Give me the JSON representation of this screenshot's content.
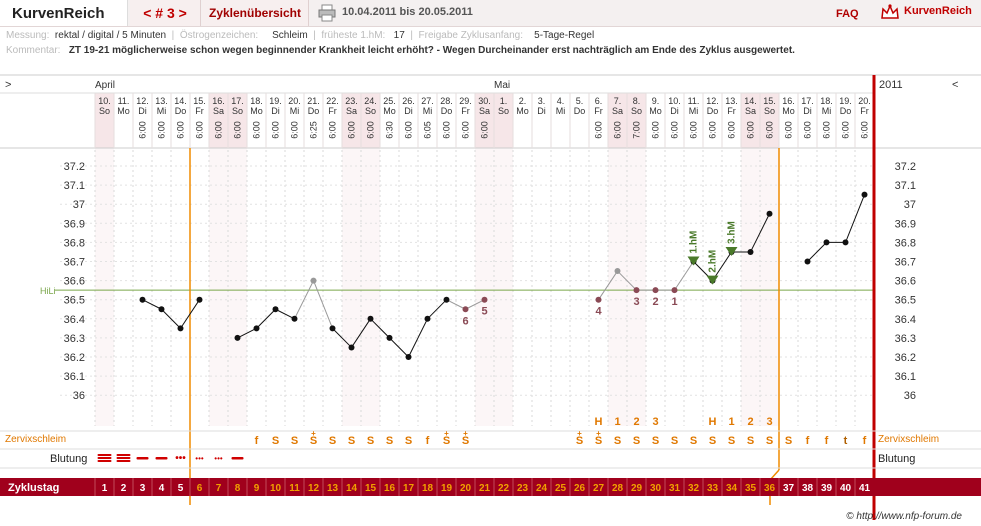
{
  "app": {
    "title": "KurvenReich",
    "cycle_nav": "< # 3 >",
    "overview_link": "Zyklenübersicht",
    "date_range": "10.04.2011 bis 20.05.2011",
    "faq": "FAQ",
    "logo_text": "KurvenReich",
    "print_icon": "printer-icon",
    "logo_icon": "crown-icon"
  },
  "meta": {
    "messung_label": "Messung:",
    "messung_value": "rektal / digital / 5 Minuten",
    "oestrogen_label": "Östrogenzeichen:",
    "oestrogen_value": "Schleim",
    "hm_label": "früheste 1.hM:",
    "hm_value": "17",
    "freigabe_label": "Freigabe Zyklusanfang:",
    "freigabe_value": "5-Tage-Regel",
    "kommentar_label": "Kommentar:",
    "kommentar_value": "ZT 19-21 möglicherweise schon wegen beginnender Krankheit leicht erhöht? - Wegen Durcheinander erst nachträglich am Ende des Zyklus ausgewertet."
  },
  "nav": {
    "prev": ">",
    "next": "<",
    "year": "2011"
  },
  "chart_data": {
    "type": "line",
    "months": [
      {
        "label": "April",
        "day_index": 0
      },
      {
        "label": "Mai",
        "day_index": 21
      }
    ],
    "dates": [
      "10.",
      "11.",
      "12.",
      "13.",
      "14.",
      "15.",
      "16.",
      "17.",
      "18.",
      "19.",
      "20.",
      "21.",
      "22.",
      "23.",
      "24.",
      "25.",
      "26.",
      "27.",
      "28.",
      "29.",
      "30.",
      "1.",
      "2.",
      "3.",
      "4.",
      "5.",
      "6.",
      "7.",
      "8.",
      "9.",
      "10.",
      "11.",
      "12.",
      "13.",
      "14.",
      "15.",
      "16.",
      "17.",
      "18.",
      "19.",
      "20."
    ],
    "weekdays": [
      "So",
      "Mo",
      "Di",
      "Mi",
      "Do",
      "Fr",
      "Sa",
      "So",
      "Mo",
      "Di",
      "Mi",
      "Do",
      "Fr",
      "Sa",
      "So",
      "Mo",
      "Di",
      "Mi",
      "Do",
      "Fr",
      "Sa",
      "So",
      "Mo",
      "Di",
      "Mi",
      "Do",
      "Fr",
      "Sa",
      "So",
      "Mo",
      "Di",
      "Mi",
      "Do",
      "Fr",
      "Sa",
      "So",
      "Mo",
      "Di",
      "Mi",
      "Do",
      "Fr"
    ],
    "times": [
      "",
      "",
      "6:00",
      "6:00",
      "6:00",
      "6:00",
      "6:00",
      "6:00",
      "6:00",
      "6:00",
      "6:00",
      "6:25",
      "6:00",
      "6:00",
      "6:00",
      "6:30",
      "6:00",
      "6:05",
      "6:00",
      "6:00",
      "6:00",
      "",
      "",
      "",
      "",
      "",
      "6:00",
      "6:00",
      "7:00",
      "6:00",
      "6:00",
      "6:00",
      "6:00",
      "6:00",
      "6:00",
      "6:00",
      "6:00",
      "6:00",
      "6:00",
      "6:00",
      "6:00"
    ],
    "weekend_days": [
      0,
      6,
      7,
      13,
      14,
      20,
      21,
      27,
      28,
      34,
      35
    ],
    "y_ticks": [
      "37.2",
      "37.1",
      "37",
      "36.9",
      "36.8",
      "36.7",
      "36.6",
      "36.5",
      "36.4",
      "36.3",
      "36.2",
      "36.1",
      "36"
    ],
    "ylim": [
      35.9,
      37.3
    ],
    "hili_label": "HiLi",
    "hili_value": 36.55,
    "temps": [
      null,
      null,
      36.5,
      36.45,
      36.35,
      36.5,
      null,
      36.3,
      36.35,
      36.45,
      36.4,
      36.6,
      36.35,
      36.25,
      36.4,
      36.3,
      36.2,
      36.4,
      36.5,
      36.45,
      36.5,
      null,
      null,
      null,
      null,
      null,
      36.5,
      36.65,
      36.55,
      36.55,
      36.55,
      36.7,
      36.6,
      36.75,
      36.75,
      36.95,
      null,
      36.7,
      36.8,
      36.8,
      37.05
    ],
    "excluded": [
      11,
      19,
      20,
      26,
      27,
      28,
      29,
      30
    ],
    "count_labels": [
      {
        "day": 19,
        "text": "6"
      },
      {
        "day": 20,
        "text": "5"
      },
      {
        "day": 26,
        "text": "4"
      },
      {
        "day": 28,
        "text": "3"
      },
      {
        "day": 29,
        "text": "2"
      },
      {
        "day": 30,
        "text": "1"
      }
    ],
    "hm_markers": [
      {
        "day": 31,
        "text": "1.hM"
      },
      {
        "day": 32,
        "text": "2.hM"
      },
      {
        "day": 33,
        "text": "3.hM"
      }
    ],
    "count_row": [
      {
        "day": 26,
        "text": "H"
      },
      {
        "day": 27,
        "text": "1"
      },
      {
        "day": 28,
        "text": "2"
      },
      {
        "day": 29,
        "text": "3"
      },
      {
        "day": 32,
        "text": "H"
      },
      {
        "day": 33,
        "text": "1"
      },
      {
        "day": 34,
        "text": "2"
      },
      {
        "day": 35,
        "text": "3"
      }
    ],
    "cervix_label": "Zervixschleim",
    "cervix": [
      "",
      "",
      "",
      "",
      "",
      "",
      "",
      "",
      "f",
      "S",
      "S",
      "S̈",
      "S",
      "S",
      "S",
      "S",
      "S",
      "f",
      "S̈",
      "S̈",
      "",
      "",
      "",
      "",
      "",
      "S̈",
      "S̈",
      "S",
      "S",
      "S",
      "S",
      "S",
      "S",
      "S",
      "S",
      "S",
      "S",
      "f",
      "f",
      "t",
      "f"
    ],
    "cervix_text": [
      "",
      "",
      "",
      "",
      "",
      "",
      "",
      "",
      "f",
      "S",
      "S",
      "S",
      "S",
      "S",
      "S",
      "S",
      "S",
      "f",
      "S",
      "S",
      "",
      "",
      "",
      "",
      "",
      "S",
      "S",
      "S",
      "S",
      "S",
      "S",
      "S",
      "S",
      "S",
      "S",
      "S",
      "S",
      "f",
      "f",
      "t",
      "f"
    ],
    "cervix_plus": [
      11,
      18,
      19,
      25,
      26
    ],
    "bleeding_label": "Blutung",
    "bleeding": [
      "heavy",
      "heavy",
      "medium",
      "medium",
      "light",
      "spot",
      "spot",
      "medium",
      "",
      "",
      "",
      "",
      "",
      "",
      "",
      "",
      "",
      "",
      "",
      "",
      "",
      "",
      "",
      "",
      "",
      "",
      "",
      "",
      "",
      "",
      "",
      "",
      "",
      "",
      "",
      "",
      "",
      "",
      "",
      "",
      ""
    ],
    "cycle_label": "Zyklustag",
    "cycle_days": [
      "1",
      "2",
      "3",
      "4",
      "5",
      "6",
      "7",
      "8",
      "9",
      "10",
      "11",
      "12",
      "13",
      "14",
      "15",
      "16",
      "17",
      "18",
      "19",
      "20",
      "21",
      "22",
      "23",
      "24",
      "25",
      "26",
      "27",
      "28",
      "29",
      "30",
      "31",
      "32",
      "33",
      "34",
      "35",
      "36",
      "37",
      "38",
      "39",
      "40",
      "41"
    ],
    "fertile_start_line_day": 5,
    "fertile_end_line_day": 35,
    "copyright": "© http://www.nfp-forum.de"
  }
}
